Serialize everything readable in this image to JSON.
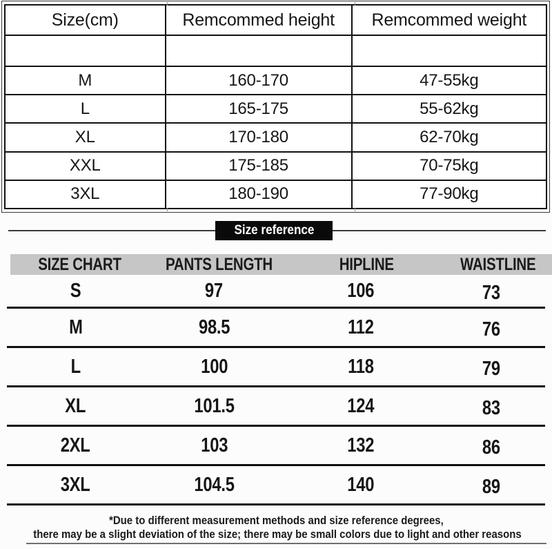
{
  "banner": {
    "label": "Size reference"
  },
  "footnote": {
    "line1": "*Due to different measurement methods and size reference degrees,",
    "line2": "there may be a slight deviation of the size; there may be small colors due to light and other reasons"
  },
  "colors": {
    "table_border": "#111111",
    "band_gray": "#c6c6c6",
    "banner_bg": "#0a0a0a",
    "banner_text": "#ffffff",
    "rule_gray": "#6f6f6f"
  },
  "chart_data": [
    {
      "type": "table",
      "columns": [
        "Size(cm)",
        "Remcommed height",
        "Remcommed weight"
      ],
      "rows": [
        [
          "M",
          "160-170",
          "47-55kg"
        ],
        [
          "L",
          "165-175",
          "55-62kg"
        ],
        [
          "XL",
          "170-180",
          "62-70kg"
        ],
        [
          "XXL",
          "175-185",
          "70-75kg"
        ],
        [
          "3XL",
          "180-190",
          "77-90kg"
        ]
      ],
      "layout": "bordered grid with one blank spacer row under header"
    },
    {
      "type": "table",
      "columns": [
        "SIZE CHART",
        "PANTS LENGTH",
        "HIPLINE",
        "WAISTLINE"
      ],
      "rows": [
        [
          "S",
          "97",
          "106",
          "73"
        ],
        [
          "M",
          "98.5",
          "112",
          "76"
        ],
        [
          "L",
          "100",
          "118",
          "79"
        ],
        [
          "XL",
          "101.5",
          "124",
          "83"
        ],
        [
          "2XL",
          "103",
          "132",
          "86"
        ],
        [
          "3XL",
          "104.5",
          "140",
          "89"
        ]
      ],
      "layout": "gray header band, horizontal rules only"
    }
  ]
}
